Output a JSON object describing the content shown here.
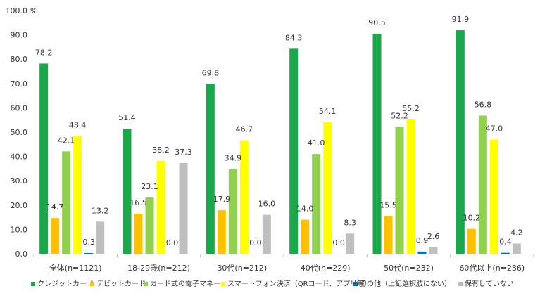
{
  "chart_data": {
    "type": "bar",
    "y_unit_label": "%",
    "ylim": [
      0,
      100
    ],
    "y_ticks": [
      "0.0",
      "10.0",
      "20.0",
      "30.0",
      "40.0",
      "50.0",
      "60.0",
      "70.0",
      "80.0",
      "90.0",
      "100.0"
    ],
    "grid": false,
    "legend_position": "bottom",
    "categories": [
      "全体(n=1121)",
      "18-29歳(n=212)",
      "30代(n=212)",
      "40代(n=229)",
      "50代(n=232)",
      "60代以上(n=236)"
    ],
    "series": [
      {
        "name": "クレジットカード",
        "color": "#1BA84A",
        "values": [
          78.2,
          51.4,
          69.8,
          84.3,
          90.5,
          91.9
        ]
      },
      {
        "name": "デビットカード",
        "color": "#FFC000",
        "values": [
          14.7,
          16.5,
          17.9,
          14.0,
          15.5,
          10.2
        ]
      },
      {
        "name": "カード式の電子マネー",
        "color": "#92D050",
        "values": [
          42.1,
          23.1,
          34.9,
          41.0,
          52.2,
          56.8
        ]
      },
      {
        "name": "スマートフォン決済（QRコード、アプリ等）",
        "color": "#FFFF00",
        "values": [
          48.4,
          38.2,
          46.7,
          54.1,
          55.2,
          47.0
        ]
      },
      {
        "name": "その他（上記選択肢にない）",
        "color": "#0070C0",
        "values": [
          0.3,
          0.0,
          0.0,
          0.0,
          0.9,
          0.4
        ]
      },
      {
        "name": "保有していない",
        "color": "#BFBFBF",
        "values": [
          13.2,
          37.3,
          16.0,
          8.3,
          2.6,
          4.2
        ]
      }
    ]
  }
}
